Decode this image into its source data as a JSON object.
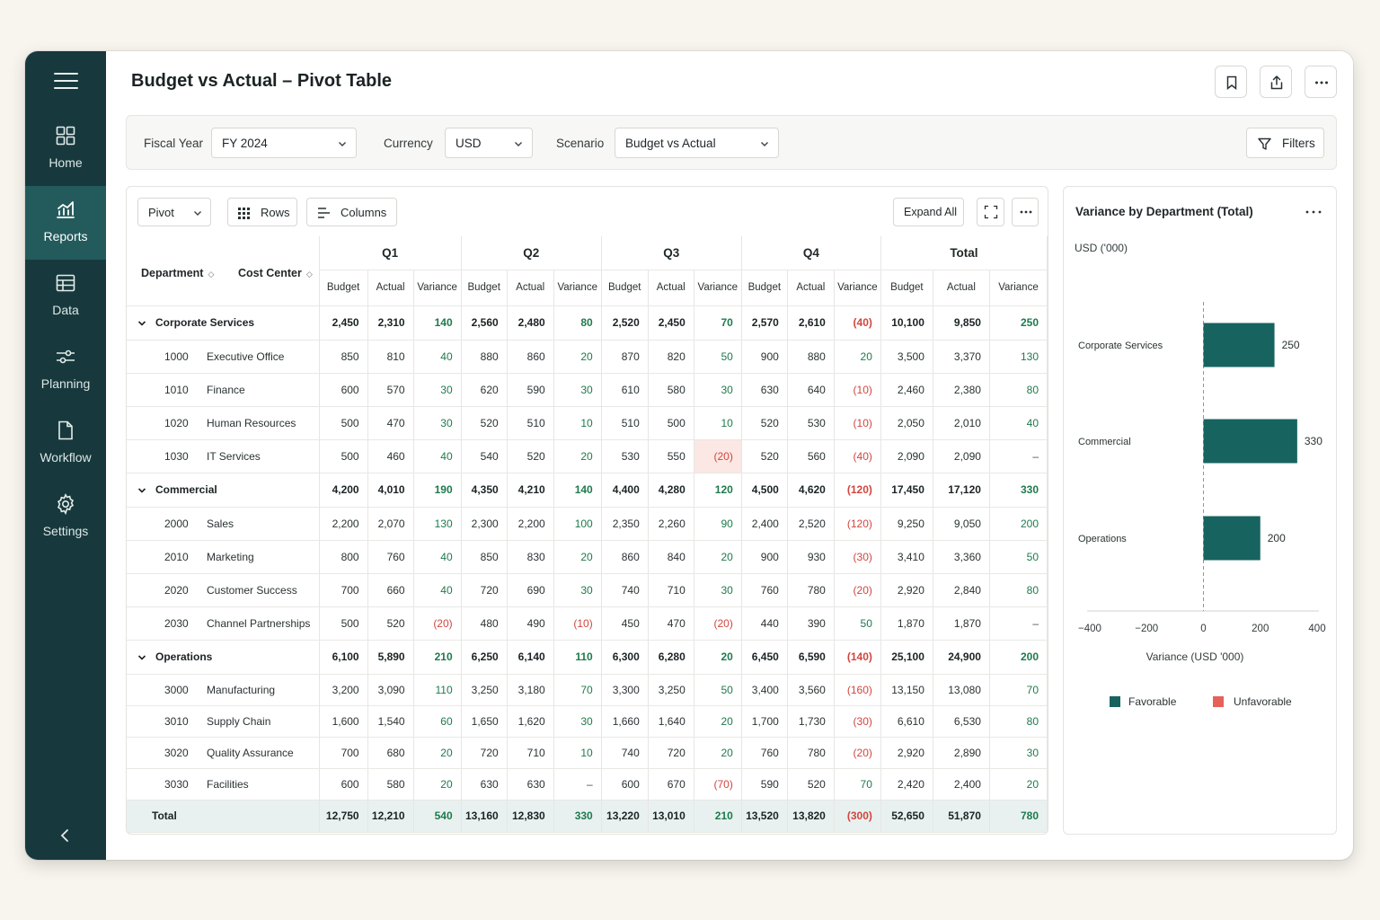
{
  "sidebar": {
    "items": [
      {
        "label": "Home",
        "icon": "grid-icon"
      },
      {
        "label": "Reports",
        "icon": "chart-icon",
        "active": true
      },
      {
        "label": "Data",
        "icon": "table-icon"
      },
      {
        "label": "Planning",
        "icon": "sliders-icon"
      },
      {
        "label": "Workflow",
        "icon": "document-icon"
      },
      {
        "label": "Settings",
        "icon": "gear-icon"
      }
    ]
  },
  "header": {
    "title": "Budget vs Actual – Pivot Table"
  },
  "filters": {
    "fiscal_year_label": "Fiscal Year",
    "fiscal_year_value": "FY 2024",
    "currency_label": "Currency",
    "currency_value": "USD",
    "scenario_label": "Scenario",
    "scenario_value": "Budget vs Actual",
    "filters_button": "Filters"
  },
  "toolbar": {
    "pivot": "Pivot",
    "rows": "Rows",
    "columns": "Columns",
    "expand_all": "Expand All"
  },
  "table": {
    "dept_header": "Department",
    "cost_center_header": "Cost Center",
    "quarters": [
      "Q1",
      "Q2",
      "Q3",
      "Q4",
      "Total"
    ],
    "subheaders": [
      "Budget",
      "Actual",
      "Variance"
    ],
    "rows": [
      {
        "type": "group",
        "name": "Corporate Services",
        "cells": [
          "2,450",
          "2,310",
          "140",
          "2,560",
          "2,480",
          "80",
          "2,520",
          "2,450",
          "70",
          "2,570",
          "2,610",
          "(40)",
          "10,100",
          "9,850",
          "250"
        ]
      },
      {
        "type": "leaf",
        "code": "1000",
        "name": "Executive Office",
        "cells": [
          "850",
          "810",
          "40",
          "880",
          "860",
          "20",
          "870",
          "820",
          "50",
          "900",
          "880",
          "20",
          "3,500",
          "3,370",
          "130"
        ]
      },
      {
        "type": "leaf",
        "code": "1010",
        "name": "Finance",
        "cells": [
          "600",
          "570",
          "30",
          "620",
          "590",
          "30",
          "610",
          "580",
          "30",
          "630",
          "640",
          "(10)",
          "2,460",
          "2,380",
          "80"
        ]
      },
      {
        "type": "leaf",
        "code": "1020",
        "name": "Human Resources",
        "cells": [
          "500",
          "470",
          "30",
          "520",
          "510",
          "10",
          "510",
          "500",
          "10",
          "520",
          "530",
          "(10)",
          "2,050",
          "2,010",
          "40"
        ]
      },
      {
        "type": "leaf",
        "code": "1030",
        "name": "IT Services",
        "cells": [
          "500",
          "460",
          "40",
          "540",
          "520",
          "20",
          "530",
          "550",
          "(20)",
          "520",
          "560",
          "(40)",
          "2,090",
          "2,090",
          "–"
        ]
      },
      {
        "type": "group",
        "name": "Commercial",
        "cells": [
          "4,200",
          "4,010",
          "190",
          "4,350",
          "4,210",
          "140",
          "4,400",
          "4,280",
          "120",
          "4,500",
          "4,620",
          "(120)",
          "17,450",
          "17,120",
          "330"
        ]
      },
      {
        "type": "leaf",
        "code": "2000",
        "name": "Sales",
        "cells": [
          "2,200",
          "2,070",
          "130",
          "2,300",
          "2,200",
          "100",
          "2,350",
          "2,260",
          "90",
          "2,400",
          "2,520",
          "(120)",
          "9,250",
          "9,050",
          "200"
        ]
      },
      {
        "type": "leaf",
        "code": "2010",
        "name": "Marketing",
        "cells": [
          "800",
          "760",
          "40",
          "850",
          "830",
          "20",
          "860",
          "840",
          "20",
          "900",
          "930",
          "(30)",
          "3,410",
          "3,360",
          "50"
        ]
      },
      {
        "type": "leaf",
        "code": "2020",
        "name": "Customer Success",
        "cells": [
          "700",
          "660",
          "40",
          "720",
          "690",
          "30",
          "740",
          "710",
          "30",
          "760",
          "780",
          "(20)",
          "2,920",
          "2,840",
          "80"
        ]
      },
      {
        "type": "leaf",
        "code": "2030",
        "name": "Channel Partnerships",
        "cells": [
          "500",
          "520",
          "(20)",
          "480",
          "490",
          "(10)",
          "450",
          "470",
          "(20)",
          "440",
          "390",
          "50",
          "1,870",
          "1,870",
          "–"
        ]
      },
      {
        "type": "group",
        "name": "Operations",
        "cells": [
          "6,100",
          "5,890",
          "210",
          "6,250",
          "6,140",
          "110",
          "6,300",
          "6,280",
          "20",
          "6,450",
          "6,590",
          "(140)",
          "25,100",
          "24,900",
          "200"
        ]
      },
      {
        "type": "leaf",
        "code": "3000",
        "name": "Manufacturing",
        "cells": [
          "3,200",
          "3,090",
          "110",
          "3,250",
          "3,180",
          "70",
          "3,300",
          "3,250",
          "50",
          "3,400",
          "3,560",
          "(160)",
          "13,150",
          "13,080",
          "70"
        ]
      },
      {
        "type": "leaf",
        "code": "3010",
        "name": "Supply Chain",
        "cells": [
          "1,600",
          "1,540",
          "60",
          "1,650",
          "1,620",
          "30",
          "1,660",
          "1,640",
          "20",
          "1,700",
          "1,730",
          "(30)",
          "6,610",
          "6,530",
          "80"
        ]
      },
      {
        "type": "leaf",
        "code": "3020",
        "name": "Quality Assurance",
        "cells": [
          "700",
          "680",
          "20",
          "720",
          "710",
          "10",
          "740",
          "720",
          "20",
          "760",
          "780",
          "(20)",
          "2,920",
          "2,890",
          "30"
        ]
      },
      {
        "type": "leaf",
        "code": "3030",
        "name": "Facilities",
        "cells": [
          "600",
          "580",
          "20",
          "630",
          "630",
          "–",
          "600",
          "670",
          "(70)",
          "590",
          "520",
          "70",
          "2,420",
          "2,400",
          "20"
        ]
      },
      {
        "type": "total",
        "name": "Total",
        "cells": [
          "12,750",
          "12,210",
          "540",
          "13,160",
          "12,830",
          "330",
          "13,220",
          "13,010",
          "210",
          "13,520",
          "13,820",
          "(300)",
          "52,650",
          "51,870",
          "780"
        ]
      }
    ]
  },
  "chart_panel": {
    "title": "Variance by Department (Total)",
    "unit": "USD ('000)"
  },
  "colors": {
    "sidebar": "#17393d",
    "sidebar_active": "#235b5d",
    "favorable": "#17635f",
    "unfavorable": "#e5615a",
    "fav_text": "#1e7a4c",
    "unf_text": "#d2453e"
  },
  "chart_data": {
    "type": "bar",
    "orientation": "horizontal",
    "categories": [
      "Corporate Services",
      "Commercial",
      "Operations"
    ],
    "values": [
      250,
      330,
      200
    ],
    "xlabel": "Variance (USD '000)",
    "xlim": [
      -400,
      400
    ],
    "xticks": [
      "-400",
      "-200",
      "0",
      "200",
      "400"
    ],
    "legend": [
      "Favorable",
      "Unfavorable"
    ],
    "legend_position": "bottom"
  }
}
